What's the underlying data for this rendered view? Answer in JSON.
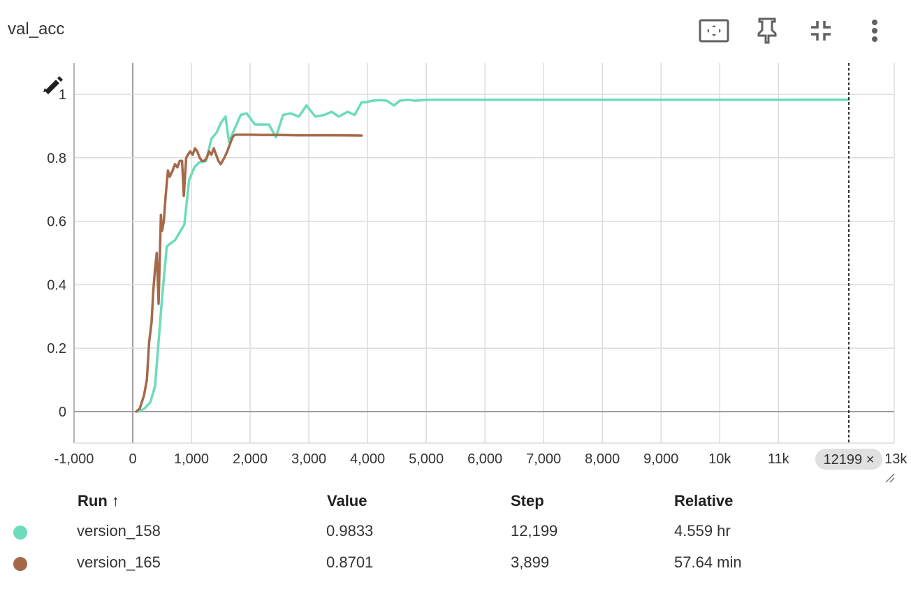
{
  "card": {
    "title": "val_acc"
  },
  "toolbar": {
    "icons": [
      "fit-domain-icon",
      "pin-icon",
      "collapse-icon",
      "more-vert-icon"
    ]
  },
  "chart_data": {
    "type": "line",
    "xlim": [
      -1000,
      13000
    ],
    "ylim": [
      -0.1,
      1.1
    ],
    "x_ticks": [
      {
        "v": -1000,
        "label": "-1,000"
      },
      {
        "v": 0,
        "label": "0"
      },
      {
        "v": 1000,
        "label": "1,000"
      },
      {
        "v": 2000,
        "label": "2,000"
      },
      {
        "v": 3000,
        "label": "3,000"
      },
      {
        "v": 4000,
        "label": "4,000"
      },
      {
        "v": 5000,
        "label": "5,000"
      },
      {
        "v": 6000,
        "label": "6,000"
      },
      {
        "v": 7000,
        "label": "7,000"
      },
      {
        "v": 8000,
        "label": "8,000"
      },
      {
        "v": 9000,
        "label": "9,000"
      },
      {
        "v": 10000,
        "label": "10k"
      },
      {
        "v": 11000,
        "label": "11k"
      },
      {
        "v": 13000,
        "label": "13k"
      }
    ],
    "y_ticks": [
      {
        "v": 0,
        "label": "0"
      },
      {
        "v": 0.2,
        "label": "0.2"
      },
      {
        "v": 0.4,
        "label": "0.4"
      },
      {
        "v": 0.6,
        "label": "0.6"
      },
      {
        "v": 0.8,
        "label": "0.8"
      },
      {
        "v": 1,
        "label": "1"
      }
    ],
    "cursor": {
      "step": 12199,
      "label": "12199 ×"
    },
    "series": [
      {
        "name": "version_158",
        "color": "#6ddbbc",
        "x": [
          100,
          200,
          300,
          380,
          440,
          500,
          580,
          640,
          720,
          880,
          960,
          1050,
          1130,
          1250,
          1340,
          1430,
          1500,
          1580,
          1640,
          1720,
          1840,
          1940,
          2080,
          2320,
          2440,
          2560,
          2690,
          2830,
          2960,
          3110,
          3260,
          3390,
          3510,
          3660,
          3780,
          3900,
          3970,
          4080,
          4210,
          4330,
          4450,
          4550,
          4680,
          4810,
          4940,
          5080,
          5400,
          6000,
          7000,
          8000,
          9000,
          10000,
          11000,
          12199
        ],
        "y": [
          0,
          0.01,
          0.03,
          0.08,
          0.22,
          0.36,
          0.52,
          0.53,
          0.54,
          0.59,
          0.73,
          0.77,
          0.785,
          0.79,
          0.86,
          0.88,
          0.91,
          0.93,
          0.85,
          0.885,
          0.935,
          0.94,
          0.905,
          0.905,
          0.865,
          0.935,
          0.94,
          0.93,
          0.965,
          0.93,
          0.935,
          0.945,
          0.93,
          0.945,
          0.935,
          0.975,
          0.975,
          0.98,
          0.982,
          0.98,
          0.965,
          0.98,
          0.983,
          0.98,
          0.982,
          0.983,
          0.983,
          0.983,
          0.983,
          0.983,
          0.983,
          0.983,
          0.983,
          0.9833
        ]
      },
      {
        "name": "version_165",
        "color": "#a5694a",
        "x": [
          60,
          120,
          190,
          240,
          280,
          320,
          350,
          380,
          410,
          440,
          480,
          500,
          530,
          560,
          600,
          630,
          680,
          720,
          760,
          800,
          840,
          870,
          910,
          940,
          980,
          1020,
          1060,
          1100,
          1140,
          1180,
          1220,
          1260,
          1300,
          1340,
          1380,
          1420,
          1460,
          1500,
          1560,
          1610,
          1650,
          1690,
          1720,
          1760,
          1800,
          2000,
          2200,
          2500,
          2800,
          3000,
          3400,
          3899
        ],
        "y": [
          0,
          0.01,
          0.05,
          0.1,
          0.22,
          0.28,
          0.38,
          0.45,
          0.5,
          0.34,
          0.62,
          0.57,
          0.6,
          0.68,
          0.76,
          0.74,
          0.76,
          0.78,
          0.77,
          0.79,
          0.79,
          0.68,
          0.8,
          0.81,
          0.82,
          0.81,
          0.83,
          0.82,
          0.8,
          0.79,
          0.79,
          0.8,
          0.82,
          0.81,
          0.83,
          0.81,
          0.79,
          0.78,
          0.8,
          0.82,
          0.84,
          0.86,
          0.87,
          0.873,
          0.873,
          0.873,
          0.872,
          0.872,
          0.871,
          0.871,
          0.871,
          0.8701
        ]
      }
    ]
  },
  "table": {
    "headers": {
      "run": "Run ↑",
      "value": "Value",
      "step": "Step",
      "relative": "Relative"
    },
    "rows": [
      {
        "color": "#6ddbbc",
        "run": "version_158",
        "value": "0.9833",
        "step": "12,199",
        "relative": "4.559 hr"
      },
      {
        "color": "#a5694a",
        "run": "version_165",
        "value": "0.8701",
        "step": "3,899",
        "relative": "57.64 min"
      }
    ]
  }
}
